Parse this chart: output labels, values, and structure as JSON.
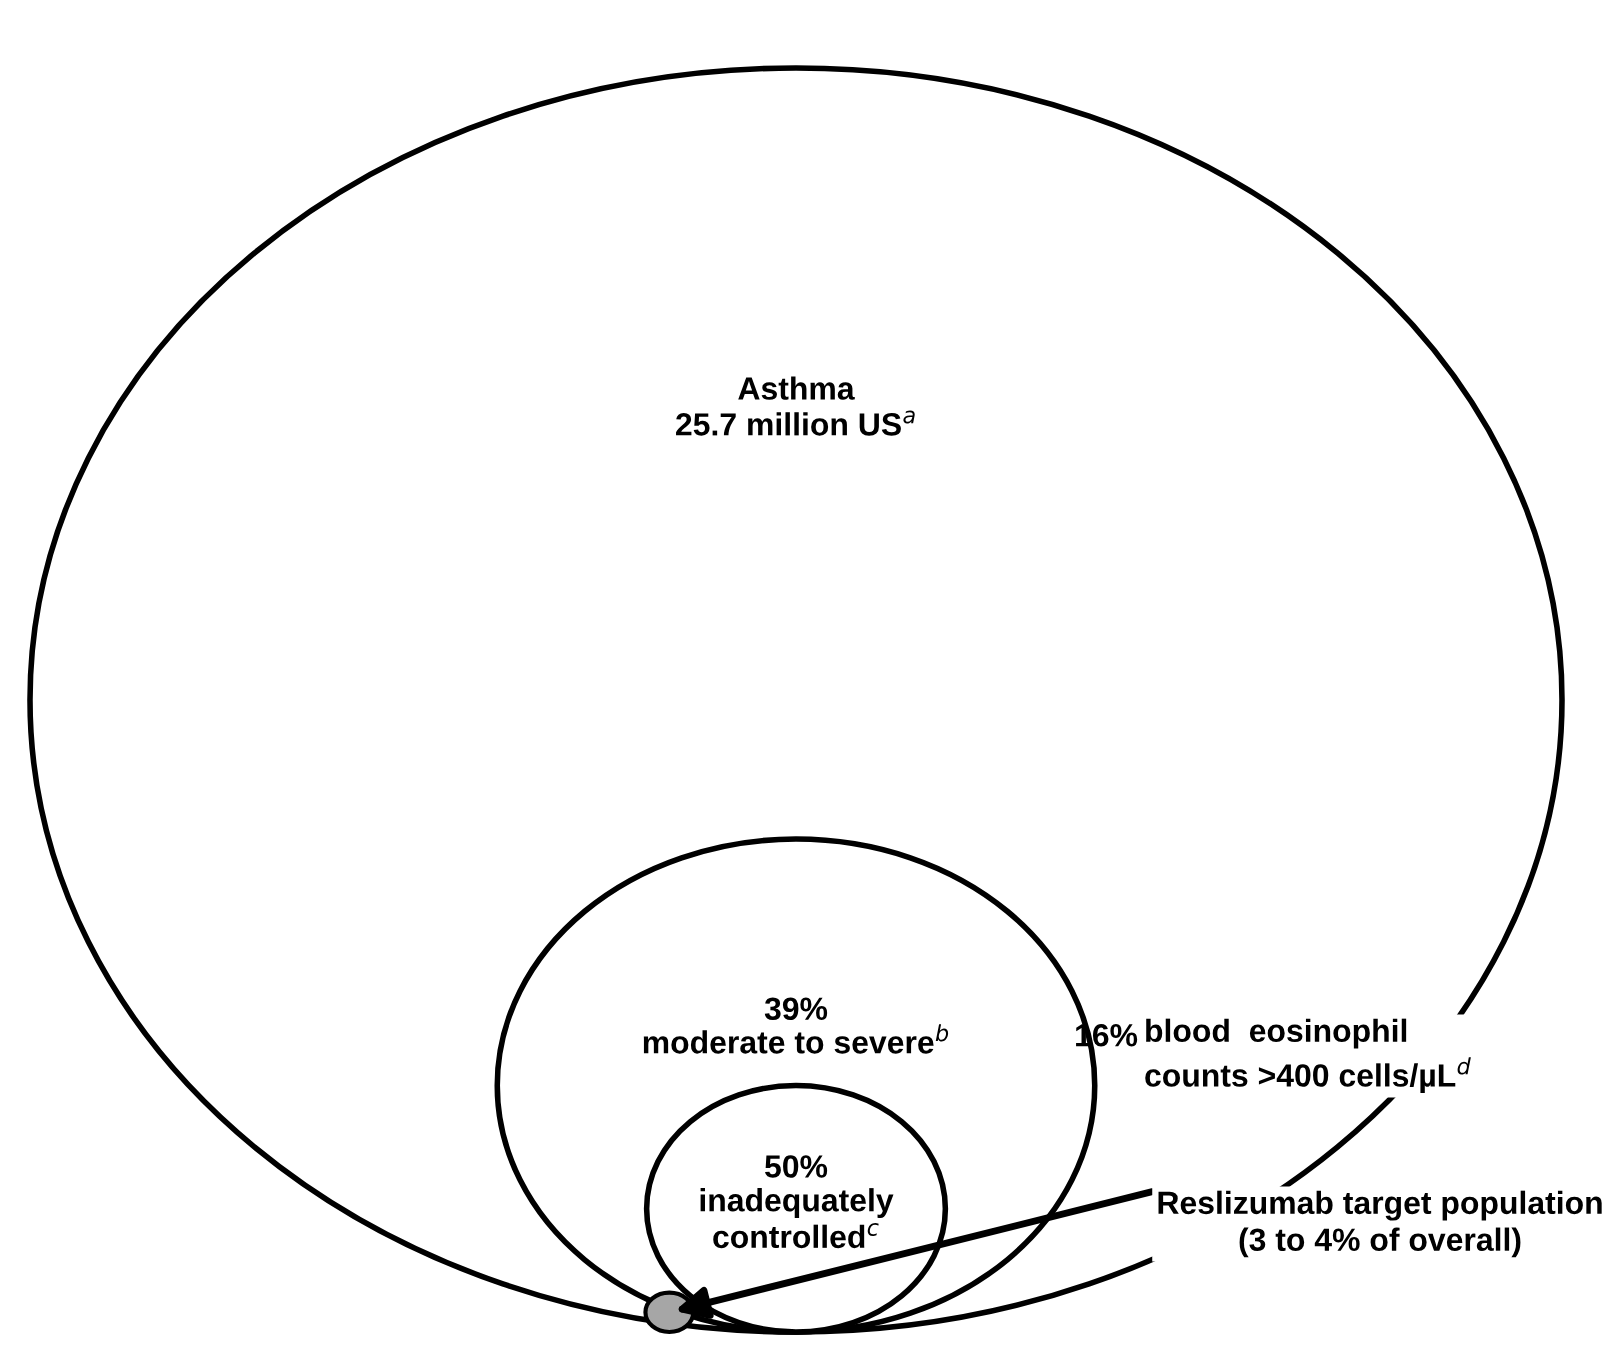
{
  "chart_data": {
    "type": "other",
    "categories": [
      "Asthma",
      "moderate to severe$^{b}$",
      "inadequately\ncontrolled$^{c}$",
      "blood  eosinophil\ncounts >400 cells/µL$^{d}$"
    ],
    "values": [
      25.7,
      39,
      50,
      16
    ],
    "value_labels": [
      "25.7 million US$^{a}$",
      "39%",
      "50%",
      "16%"
    ],
    "colors": [
      "#ffffff",
      "#ffffff",
      "#ffffff",
      "#a6a6a6"
    ],
    "annotations": [
      "Reslizumab target population\n(3 to 4% of overall)"
    ]
  }
}
